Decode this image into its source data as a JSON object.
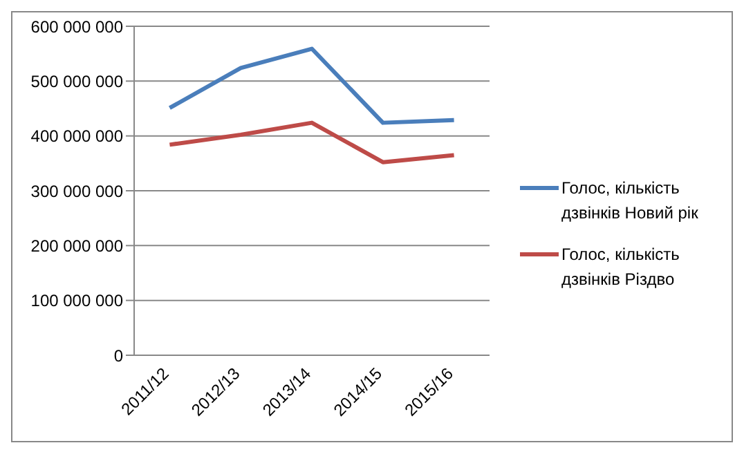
{
  "chart_data": {
    "type": "line",
    "categories": [
      "2011/12",
      "2012/13",
      "2013/14",
      "2014/15",
      "2015/16"
    ],
    "series": [
      {
        "name": "Голос, кількість дзвінків Новий рік",
        "color": "#4a7ebb",
        "values": [
          451000000,
          524000000,
          559000000,
          424000000,
          429000000
        ]
      },
      {
        "name": "Голос, кількість дзвінків Різдво",
        "color": "#be4b48",
        "values": [
          384000000,
          402000000,
          424000000,
          352000000,
          365000000
        ]
      }
    ],
    "ylim": [
      0,
      600000000
    ],
    "yticks": [
      {
        "value": 0,
        "label": "0"
      },
      {
        "value": 100000000,
        "label": "100 000 000"
      },
      {
        "value": 200000000,
        "label": "200 000 000"
      },
      {
        "value": 300000000,
        "label": "300 000 000"
      },
      {
        "value": 400000000,
        "label": "400 000 000"
      },
      {
        "value": 500000000,
        "label": "500 000 000"
      },
      {
        "value": 600000000,
        "label": "600 000 000"
      }
    ],
    "grid": "y",
    "legend": "right",
    "marker": "none",
    "line_style": "solid"
  }
}
